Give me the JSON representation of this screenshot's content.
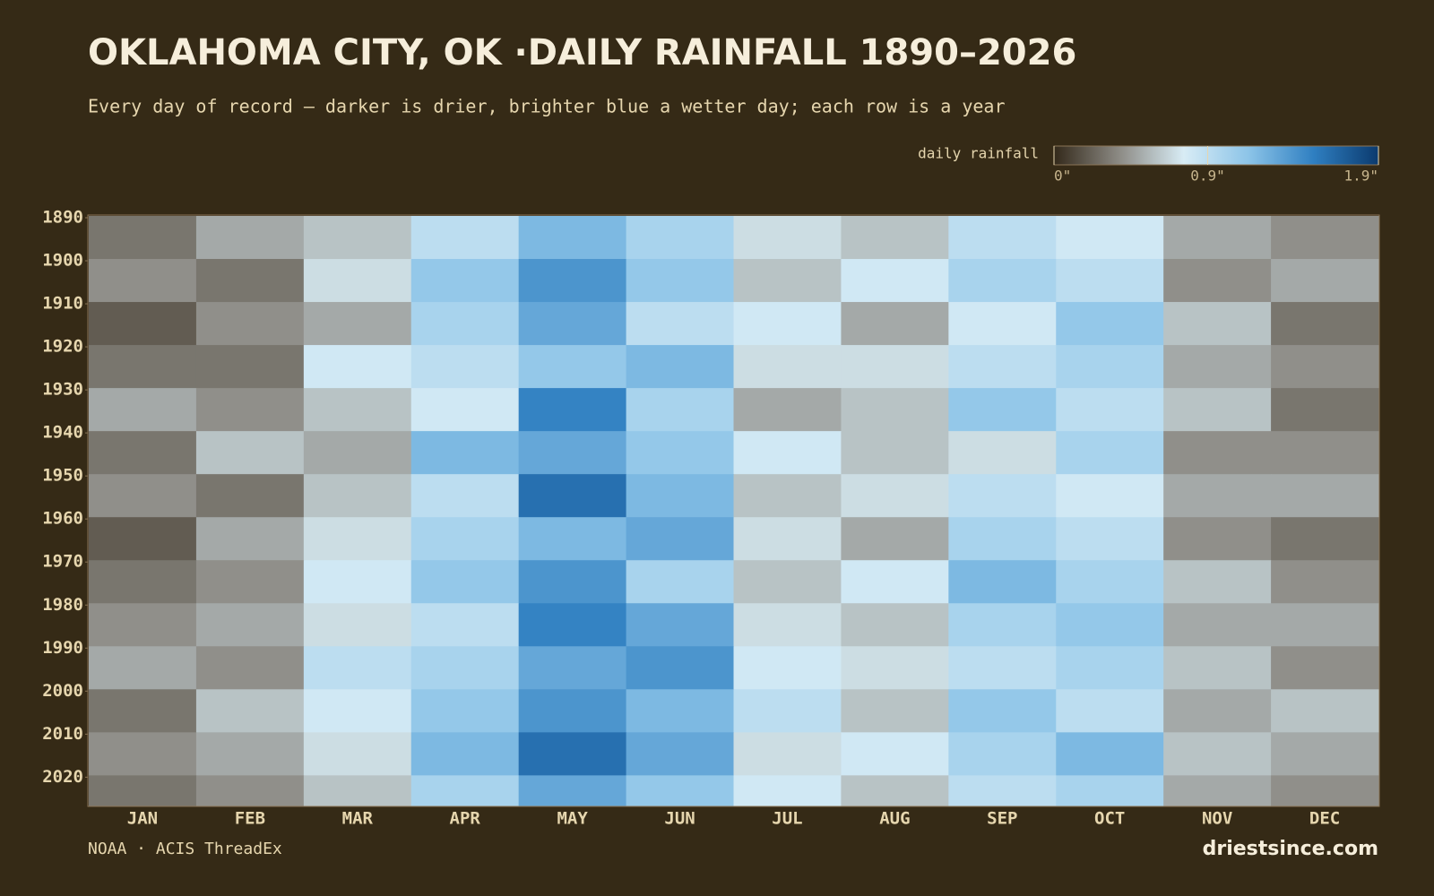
{
  "chart_data": {
    "type": "heatmap",
    "title": "OKLAHOMA CITY, OK ·DAILY RAINFALL 1890–2026",
    "subtitle": "Every day of record — darker is drier, brighter blue a wetter day; each row is a year",
    "colorbar_label": "daily rainfall",
    "zlim": [
      0,
      1.9
    ],
    "zticks": [
      {
        "value": 0,
        "label": "0\""
      },
      {
        "value": 0.9,
        "label": "0.9\""
      },
      {
        "value": 1.9,
        "label": "1.9\""
      }
    ],
    "colormap": [
      "#33291a",
      "#8c8a84",
      "#d8ecf5",
      "#8cc4e8",
      "#2f7fc1",
      "#0b3a6e"
    ],
    "categories": [
      "JAN",
      "FEB",
      "MAR",
      "APR",
      "MAY",
      "JUN",
      "JUL",
      "AUG",
      "SEP",
      "OCT",
      "NOV",
      "DEC"
    ],
    "y": [
      1890,
      1900,
      1910,
      1920,
      1930,
      1940,
      1950,
      1960,
      1970,
      1980,
      1990,
      2000,
      2010,
      2020
    ],
    "ylim": [
      1890,
      2027
    ],
    "yticks": [
      1890,
      1900,
      1910,
      1920,
      1930,
      1940,
      1950,
      1960,
      1970,
      1980,
      1990,
      2000,
      2010,
      2020
    ],
    "values": [
      [
        0.3,
        0.5,
        0.6,
        0.9,
        1.2,
        1.0,
        0.7,
        0.6,
        0.9,
        0.8,
        0.5,
        0.4
      ],
      [
        0.4,
        0.3,
        0.7,
        1.1,
        1.4,
        1.1,
        0.6,
        0.8,
        1.0,
        0.9,
        0.4,
        0.5
      ],
      [
        0.2,
        0.4,
        0.5,
        1.0,
        1.3,
        0.9,
        0.8,
        0.5,
        0.8,
        1.1,
        0.6,
        0.3
      ],
      [
        0.3,
        0.3,
        0.8,
        0.9,
        1.1,
        1.2,
        0.7,
        0.7,
        0.9,
        1.0,
        0.5,
        0.4
      ],
      [
        0.5,
        0.4,
        0.6,
        0.8,
        1.5,
        1.0,
        0.5,
        0.6,
        1.1,
        0.9,
        0.6,
        0.3
      ],
      [
        0.3,
        0.6,
        0.5,
        1.2,
        1.3,
        1.1,
        0.8,
        0.6,
        0.7,
        1.0,
        0.4,
        0.4
      ],
      [
        0.4,
        0.3,
        0.6,
        0.9,
        1.6,
        1.2,
        0.6,
        0.7,
        0.9,
        0.8,
        0.5,
        0.5
      ],
      [
        0.2,
        0.5,
        0.7,
        1.0,
        1.2,
        1.3,
        0.7,
        0.5,
        1.0,
        0.9,
        0.4,
        0.3
      ],
      [
        0.3,
        0.4,
        0.8,
        1.1,
        1.4,
        1.0,
        0.6,
        0.8,
        1.2,
        1.0,
        0.6,
        0.4
      ],
      [
        0.4,
        0.5,
        0.7,
        0.9,
        1.5,
        1.3,
        0.7,
        0.6,
        1.0,
        1.1,
        0.5,
        0.5
      ],
      [
        0.5,
        0.4,
        0.9,
        1.0,
        1.3,
        1.4,
        0.8,
        0.7,
        0.9,
        1.0,
        0.6,
        0.4
      ],
      [
        0.3,
        0.6,
        0.8,
        1.1,
        1.4,
        1.2,
        0.9,
        0.6,
        1.1,
        0.9,
        0.5,
        0.6
      ],
      [
        0.4,
        0.5,
        0.7,
        1.2,
        1.6,
        1.3,
        0.7,
        0.8,
        1.0,
        1.2,
        0.6,
        0.5
      ],
      [
        0.3,
        0.4,
        0.6,
        1.0,
        1.3,
        1.1,
        0.8,
        0.6,
        0.9,
        1.0,
        0.5,
        0.4
      ]
    ],
    "source": "NOAA · ACIS ThreadEx",
    "brand": "driestsince.com"
  }
}
